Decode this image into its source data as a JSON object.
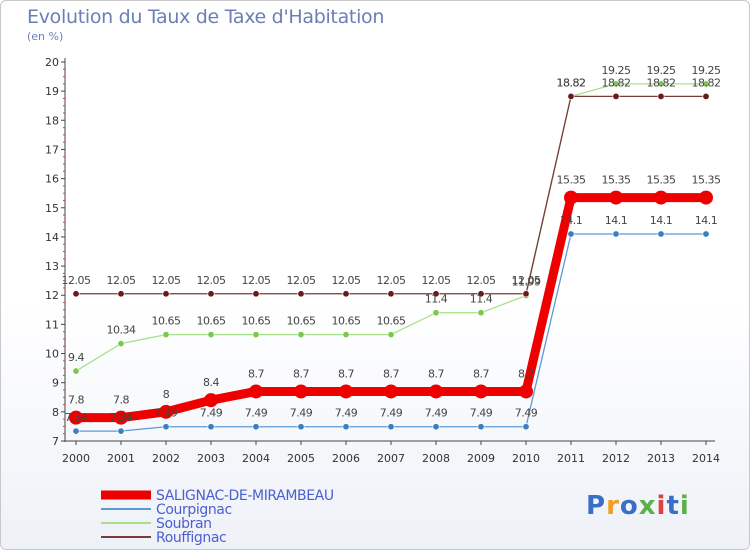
{
  "title": "Evolution du Taux de Taxe d'Habitation",
  "subtitle": "(en %)",
  "logo": "Proxiti",
  "chart_data": {
    "type": "line",
    "title": "Evolution du Taux de Taxe d'Habitation",
    "ylabel": "(en %)",
    "xlabel": "",
    "ylim": [
      7,
      20
    ],
    "yticks": [
      7,
      8,
      9,
      10,
      11,
      12,
      13,
      14,
      15,
      16,
      17,
      18,
      19,
      20
    ],
    "grid": false,
    "legend_position": "bottom-left",
    "x": [
      "2000",
      "2001",
      "2002",
      "2003",
      "2004",
      "2005",
      "2006",
      "2007",
      "2008",
      "2009",
      "2010",
      "2011",
      "2012",
      "2013",
      "2014"
    ],
    "series": [
      {
        "name": "SALIGNAC-DE-MIRAMBEAU",
        "color": "#ee0000",
        "bold": true,
        "values": [
          7.8,
          7.8,
          8,
          8.4,
          8.7,
          8.7,
          8.7,
          8.7,
          8.7,
          8.7,
          8.7,
          15.35,
          15.35,
          15.35,
          15.35
        ],
        "labels": [
          "7.8",
          "7.8",
          "8",
          "8.4",
          "8.7",
          "8.7",
          "8.7",
          "8.7",
          "8.7",
          "8.7",
          "8.7",
          "15.35",
          "15.35",
          "15.35",
          "15.35"
        ]
      },
      {
        "name": "Courpignac",
        "color": "#5b9bd5",
        "marker": "#3a7fc0",
        "values": [
          7.34,
          7.34,
          7.49,
          7.49,
          7.49,
          7.49,
          7.49,
          7.49,
          7.49,
          7.49,
          7.49,
          14.1,
          14.1,
          14.1,
          14.1
        ],
        "labels": [
          "7.34",
          "7.34",
          "7.49",
          "7.49",
          "7.49",
          "7.49",
          "7.49",
          "7.49",
          "7.49",
          "7.49",
          "7.49",
          "14.1",
          "14.1",
          "14.1",
          "14.1"
        ]
      },
      {
        "name": "Soubran",
        "color": "#a8e08a",
        "marker": "#7cc84e",
        "values": [
          9.4,
          10.34,
          10.65,
          10.65,
          10.65,
          10.65,
          10.65,
          10.65,
          11.4,
          11.4,
          11.99,
          18.82,
          19.25,
          19.25,
          19.25
        ],
        "labels": [
          "9.4",
          "10.34",
          "10.65",
          "10.65",
          "10.65",
          "10.65",
          "10.65",
          "10.65",
          "11.4",
          "11.4",
          "11.99",
          "18.82",
          "19.25",
          "19.25",
          "19.25"
        ]
      },
      {
        "name": "Rouffignac",
        "color": "#7a3a3a",
        "marker": "#6a1a1a",
        "values": [
          12.05,
          12.05,
          12.05,
          12.05,
          12.05,
          12.05,
          12.05,
          12.05,
          12.05,
          12.05,
          12.05,
          18.82,
          18.82,
          18.82,
          18.82
        ],
        "labels": [
          "12.05",
          "12.05",
          "12.05",
          "12.05",
          "12.05",
          "12.05",
          "12.05",
          "12.05",
          "12.05",
          "12.05",
          "12.05",
          "18.82",
          "18.82",
          "18.82",
          "18.82"
        ]
      }
    ]
  }
}
